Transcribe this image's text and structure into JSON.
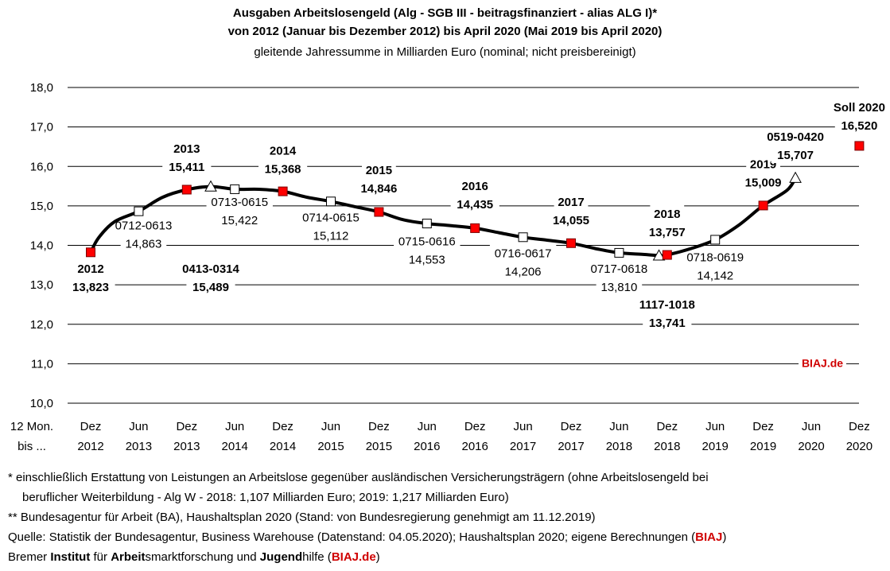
{
  "header": {
    "title_line1": "Ausgaben Arbeitslosengeld (Alg - SGB III - beitragsfinanziert - alias ALG I)*",
    "title_line2": "von 2012 (Januar bis Dezember 2012) bis April 2020 (Mai 2019 bis April 2020)",
    "subtitle": "gleitende Jahressumme in Milliarden Euro (nominal; nicht preisbereinigt)"
  },
  "chart_data": {
    "type": "line",
    "ylim": [
      10,
      18
    ],
    "yticks": [
      "10,0",
      "11,0",
      "12,0",
      "13,0",
      "14,0",
      "15,0",
      "16,0",
      "17,0",
      "18,0"
    ],
    "axis_prefix_line1": "12 Mon.",
    "axis_prefix_line2": "bis ...",
    "categories": [
      {
        "top": "Dez",
        "bottom": "2012"
      },
      {
        "top": "Jun",
        "bottom": "2013"
      },
      {
        "top": "Dez",
        "bottom": "2013"
      },
      {
        "top": "Jun",
        "bottom": "2014"
      },
      {
        "top": "Dez",
        "bottom": "2014"
      },
      {
        "top": "Jun",
        "bottom": "2015"
      },
      {
        "top": "Dez",
        "bottom": "2015"
      },
      {
        "top": "Jun",
        "bottom": "2016"
      },
      {
        "top": "Dez",
        "bottom": "2016"
      },
      {
        "top": "Jun",
        "bottom": "2017"
      },
      {
        "top": "Dez",
        "bottom": "2017"
      },
      {
        "top": "Jun",
        "bottom": "2018"
      },
      {
        "top": "Dez",
        "bottom": "2018"
      },
      {
        "top": "Jun",
        "bottom": "2019"
      },
      {
        "top": "Dez",
        "bottom": "2019"
      },
      {
        "top": "Jun",
        "bottom": "2020"
      },
      {
        "top": "Dez",
        "bottom": "2020"
      }
    ],
    "series_line": [
      [
        0,
        13.823
      ],
      [
        0.17,
        14.2
      ],
      [
        0.5,
        14.6
      ],
      [
        1,
        14.863
      ],
      [
        1.5,
        15.22
      ],
      [
        2,
        15.411
      ],
      [
        2.5,
        15.489
      ],
      [
        3,
        15.422
      ],
      [
        3.5,
        15.42
      ],
      [
        4,
        15.368
      ],
      [
        4.5,
        15.22
      ],
      [
        5,
        15.112
      ],
      [
        5.5,
        14.98
      ],
      [
        6,
        14.846
      ],
      [
        6.5,
        14.65
      ],
      [
        7,
        14.553
      ],
      [
        7.5,
        14.5
      ],
      [
        8,
        14.435
      ],
      [
        8.5,
        14.32
      ],
      [
        9,
        14.206
      ],
      [
        9.5,
        14.13
      ],
      [
        10,
        14.055
      ],
      [
        10.5,
        13.92
      ],
      [
        11,
        13.81
      ],
      [
        11.5,
        13.77
      ],
      [
        11.83,
        13.741
      ],
      [
        12,
        13.757
      ],
      [
        12.5,
        13.92
      ],
      [
        13,
        14.142
      ],
      [
        13.5,
        14.52
      ],
      [
        14,
        15.009
      ],
      [
        14.5,
        15.4
      ],
      [
        14.67,
        15.707
      ]
    ],
    "markers": [
      {
        "x": 0,
        "y": 13.823,
        "shape": "square-red"
      },
      {
        "x": 1,
        "y": 14.863,
        "shape": "square-white"
      },
      {
        "x": 2,
        "y": 15.411,
        "shape": "square-red"
      },
      {
        "x": 2.5,
        "y": 15.489,
        "shape": "triangle"
      },
      {
        "x": 3,
        "y": 15.422,
        "shape": "square-white"
      },
      {
        "x": 4,
        "y": 15.368,
        "shape": "square-red"
      },
      {
        "x": 5,
        "y": 15.112,
        "shape": "square-white"
      },
      {
        "x": 6,
        "y": 14.846,
        "shape": "square-red"
      },
      {
        "x": 7,
        "y": 14.553,
        "shape": "square-white"
      },
      {
        "x": 8,
        "y": 14.435,
        "shape": "square-red"
      },
      {
        "x": 9,
        "y": 14.206,
        "shape": "square-white"
      },
      {
        "x": 10,
        "y": 14.055,
        "shape": "square-red"
      },
      {
        "x": 11,
        "y": 13.81,
        "shape": "square-white"
      },
      {
        "x": 11.83,
        "y": 13.741,
        "shape": "triangle"
      },
      {
        "x": 12,
        "y": 13.757,
        "shape": "square-red"
      },
      {
        "x": 13,
        "y": 14.142,
        "shape": "square-white"
      },
      {
        "x": 14,
        "y": 15.009,
        "shape": "square-red"
      },
      {
        "x": 14.67,
        "y": 15.707,
        "shape": "triangle"
      },
      {
        "x": 16,
        "y": 16.52,
        "shape": "square-red"
      }
    ],
    "labels": [
      {
        "x": 0,
        "y": 13.3,
        "bold": true,
        "lines": [
          "2012",
          "13,823"
        ]
      },
      {
        "x": 2,
        "y": 16.35,
        "bold": true,
        "lines": [
          "2013",
          "15,411"
        ]
      },
      {
        "x": 2.5,
        "y": 13.3,
        "bold": true,
        "lines": [
          "0413-0314",
          "15,489"
        ]
      },
      {
        "x": 4,
        "y": 16.3,
        "bold": true,
        "lines": [
          "2014",
          "15,368"
        ]
      },
      {
        "x": 6,
        "y": 15.8,
        "bold": true,
        "lines": [
          "2015",
          "14,846"
        ]
      },
      {
        "x": 8,
        "y": 15.4,
        "bold": true,
        "lines": [
          "2016",
          "14,435"
        ]
      },
      {
        "x": 10,
        "y": 15.0,
        "bold": true,
        "lines": [
          "2017",
          "14,055"
        ]
      },
      {
        "x": 12,
        "y": 14.7,
        "bold": true,
        "lines": [
          "2018",
          "13,757"
        ]
      },
      {
        "x": 12,
        "y": 12.4,
        "bold": true,
        "lines": [
          "1117-1018",
          "13,741"
        ]
      },
      {
        "x": 14,
        "y": 15.95,
        "bold": true,
        "lines": [
          "2019",
          "15,009"
        ]
      },
      {
        "x": 14.67,
        "y": 16.65,
        "bold": true,
        "lines": [
          "0519-0420",
          "15,707"
        ]
      },
      {
        "x": 16,
        "y": 17.4,
        "bold": true,
        "lines": [
          "Soll 2020",
          "16,520"
        ]
      },
      {
        "x": 1.1,
        "y": 14.4,
        "bold": false,
        "lines": [
          "0712-0613",
          "14,863"
        ]
      },
      {
        "x": 3.1,
        "y": 15.0,
        "bold": false,
        "lines": [
          "0713-0615",
          "15,422"
        ]
      },
      {
        "x": 5.0,
        "y": 14.6,
        "bold": false,
        "lines": [
          "0714-0615",
          "15,112"
        ]
      },
      {
        "x": 7.0,
        "y": 14.0,
        "bold": false,
        "lines": [
          "0715-0616",
          "14,553"
        ]
      },
      {
        "x": 9.0,
        "y": 13.7,
        "bold": false,
        "lines": [
          "0716-0617",
          "14,206"
        ]
      },
      {
        "x": 11.0,
        "y": 13.3,
        "bold": false,
        "lines": [
          "0717-0618",
          "13,810"
        ]
      },
      {
        "x": 13.0,
        "y": 13.6,
        "bold": false,
        "lines": [
          "0718-0619",
          "14,142"
        ]
      }
    ],
    "watermark": "BIAJ.de"
  },
  "footnotes": {
    "line1": "*  einschließlich Erstattung von Leistungen an Arbeitslose gegenüber ausländischen Versicherungsträgern (ohne Arbeitslosengeld bei",
    "line2": "beruflicher Weiterbildung  - Alg W - 2018: 1,107 Milliarden Euro; 2019: 1,217 Milliarden Euro)",
    "line3": "** Bundesagentur für Arbeit (BA), Haushaltsplan 2020 (Stand: von Bundesregierung genehmigt am 11.12.2019)",
    "line4_text": "Quelle: Statistik der Bundesagentur, Business Warehouse (Datenstand: 04.05.2020); Haushaltsplan 2020; eigene Berechnungen (",
    "line4_red": "BIAJ",
    "line4_end": ")",
    "line5_a": "Bremer ",
    "line5_b": "Institut",
    "line5_c": " für ",
    "line5_d": "Arbeit",
    "line5_e": "smarktforschung und ",
    "line5_f": "Jugend",
    "line5_g": "hilfe (",
    "line5_red": "BIAJ.de",
    "line5_end": ")"
  }
}
